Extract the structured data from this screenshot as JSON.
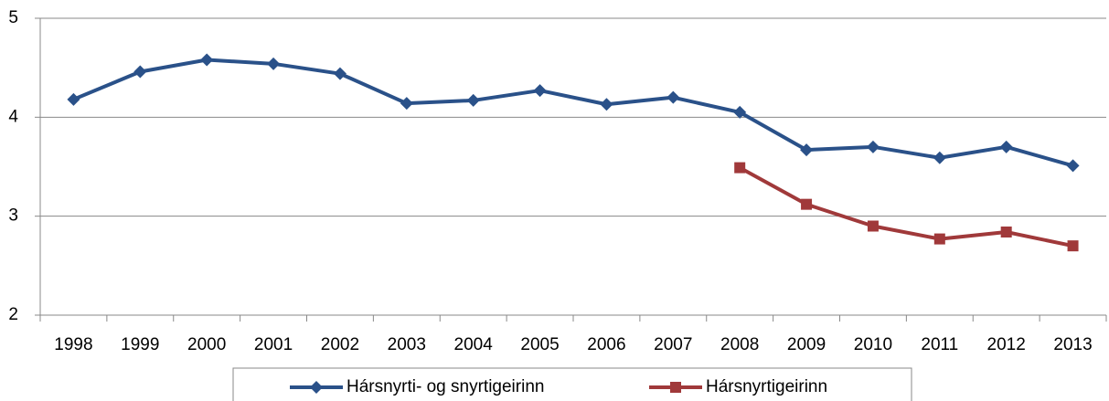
{
  "chart_data": {
    "type": "line",
    "categories": [
      "1998",
      "1999",
      "2000",
      "2001",
      "2002",
      "2003",
      "2004",
      "2005",
      "2006",
      "2007",
      "2008",
      "2009",
      "2010",
      "2011",
      "2012",
      "2013"
    ],
    "series": [
      {
        "name": "Hársnyrti- og snyrtigeirinn",
        "color": "#2a5189",
        "marker": "diamond",
        "values": [
          4.18,
          4.46,
          4.58,
          4.54,
          4.44,
          4.14,
          4.17,
          4.27,
          4.13,
          4.2,
          4.05,
          3.67,
          3.7,
          3.59,
          3.7,
          3.51
        ]
      },
      {
        "name": "Hársnyrtigeirinn",
        "color": "#a0393a",
        "marker": "square",
        "values": [
          null,
          null,
          null,
          null,
          null,
          null,
          null,
          null,
          null,
          null,
          3.49,
          3.12,
          2.9,
          2.77,
          2.84,
          2.7
        ]
      }
    ],
    "ylim": [
      2,
      5
    ],
    "yticks": [
      2,
      3,
      4,
      5
    ],
    "grid": true,
    "legend": "bottom"
  }
}
